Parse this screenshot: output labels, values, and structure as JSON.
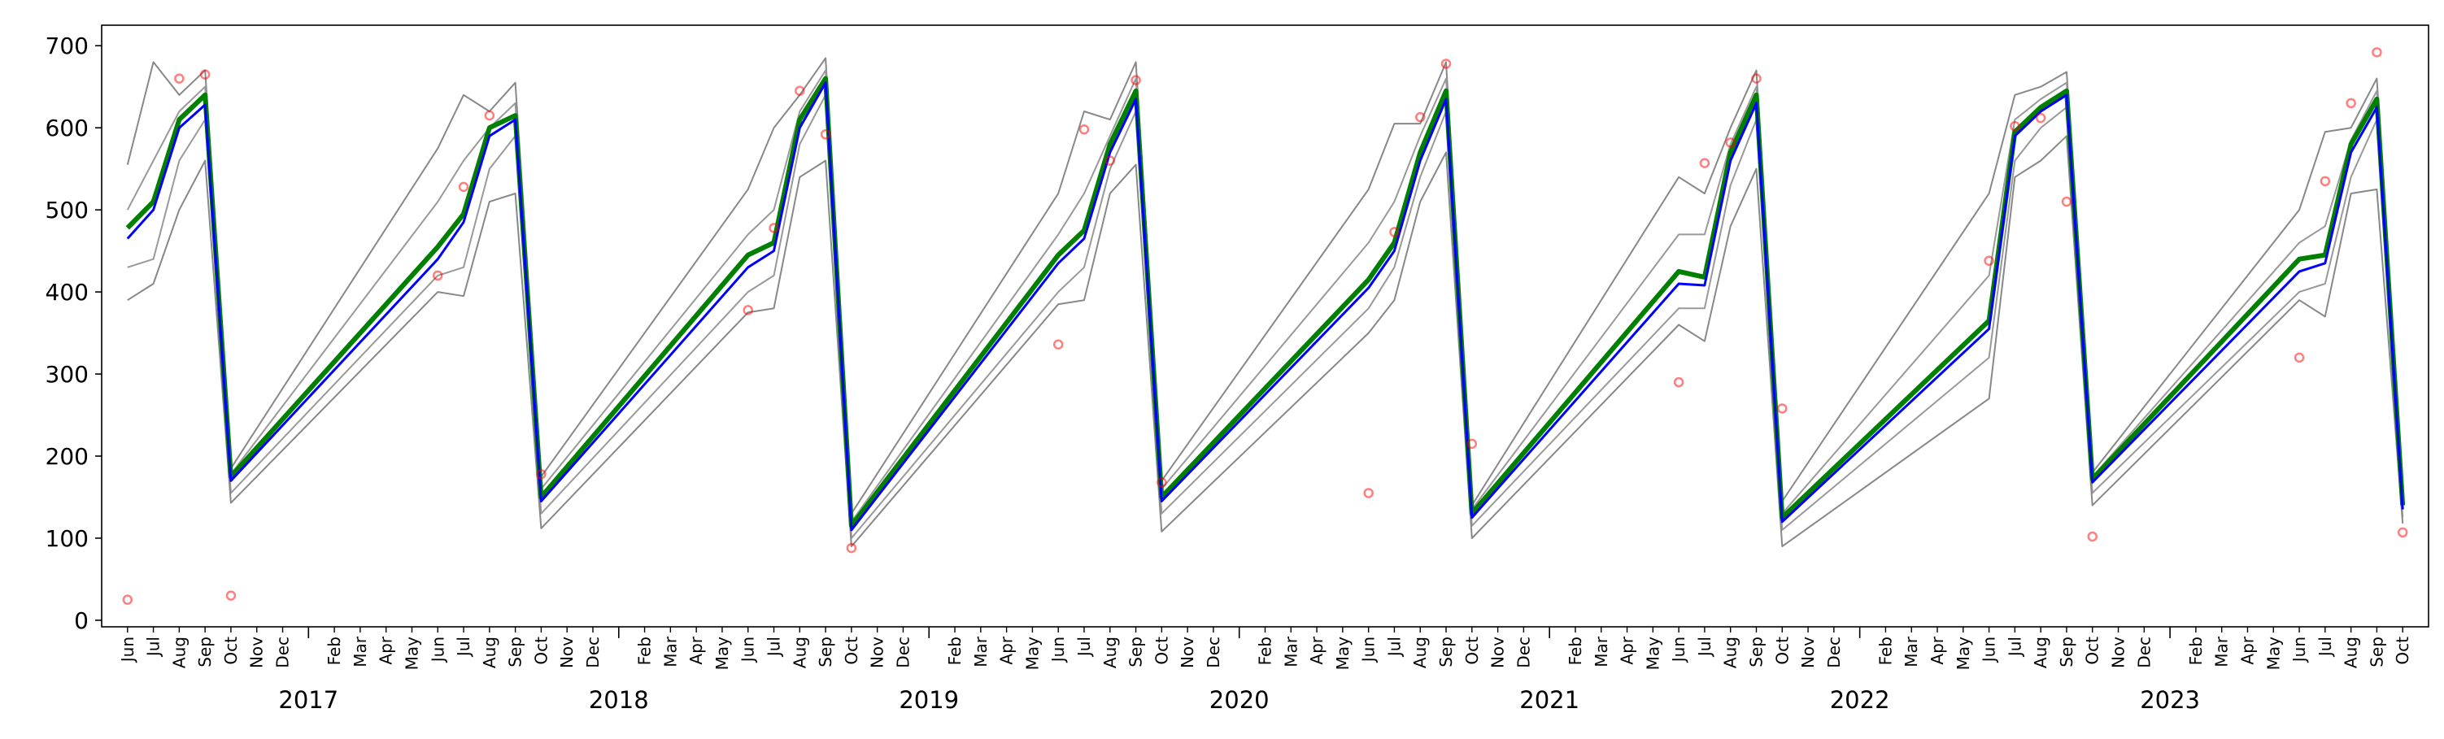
{
  "chart_data": {
    "type": "line",
    "x": [
      "2016-06",
      "2016-07",
      "2016-08",
      "2016-09",
      "2016-10",
      "2017-06",
      "2017-07",
      "2017-08",
      "2017-09",
      "2017-10",
      "2018-06",
      "2018-07",
      "2018-08",
      "2018-09",
      "2018-10",
      "2019-06",
      "2019-07",
      "2019-08",
      "2019-09",
      "2019-10",
      "2020-06",
      "2020-07",
      "2020-08",
      "2020-09",
      "2020-10",
      "2021-06",
      "2021-07",
      "2021-08",
      "2021-09",
      "2021-10",
      "2022-06",
      "2022-07",
      "2022-08",
      "2022-09",
      "2022-10",
      "2023-06",
      "2023-07",
      "2023-08",
      "2023-09",
      "2023-10"
    ],
    "series": [
      {
        "color": "#888888",
        "width": 1,
        "values": [
          555,
          680,
          640,
          670,
          185,
          575,
          640,
          620,
          655,
          175,
          525,
          600,
          640,
          685,
          130,
          520,
          620,
          610,
          680,
          170,
          525,
          605,
          605,
          680,
          140,
          540,
          520,
          600,
          670,
          145,
          520,
          640,
          650,
          668,
          180,
          500,
          595,
          600,
          660,
          165
        ]
      },
      {
        "color": "#999999",
        "width": 1,
        "values": [
          500,
          560,
          620,
          650,
          178,
          510,
          560,
          600,
          630,
          160,
          470,
          500,
          620,
          670,
          120,
          470,
          520,
          590,
          660,
          160,
          460,
          510,
          590,
          660,
          135,
          470,
          470,
          580,
          650,
          130,
          420,
          610,
          635,
          655,
          175,
          460,
          480,
          585,
          645,
          150
        ]
      },
      {
        "color": "#999999",
        "width": 1,
        "values": [
          430,
          440,
          560,
          610,
          155,
          420,
          430,
          550,
          590,
          130,
          400,
          420,
          580,
          640,
          100,
          400,
          430,
          550,
          620,
          130,
          380,
          430,
          540,
          620,
          115,
          380,
          380,
          530,
          610,
          110,
          320,
          560,
          600,
          625,
          155,
          400,
          410,
          540,
          610,
          125
        ]
      },
      {
        "color": "#888888",
        "width": 1,
        "values": [
          390,
          410,
          500,
          560,
          143,
          400,
          395,
          510,
          520,
          112,
          375,
          380,
          540,
          560,
          90,
          385,
          390,
          520,
          555,
          108,
          350,
          390,
          510,
          570,
          100,
          360,
          340,
          480,
          550,
          90,
          270,
          540,
          560,
          590,
          140,
          390,
          370,
          520,
          525,
          118
        ]
      },
      {
        "color": "#008000",
        "width": 3,
        "values": [
          478,
          510,
          610,
          640,
          175,
          455,
          495,
          600,
          615,
          150,
          445,
          460,
          610,
          660,
          115,
          445,
          475,
          580,
          645,
          150,
          415,
          460,
          570,
          645,
          130,
          425,
          418,
          570,
          640,
          125,
          365,
          595,
          625,
          645,
          172,
          440,
          445,
          580,
          635,
          140
        ]
      },
      {
        "color": "#0000ff",
        "width": 1.5,
        "values": [
          465,
          500,
          600,
          628,
          170,
          440,
          485,
          590,
          610,
          145,
          430,
          450,
          600,
          655,
          110,
          435,
          465,
          570,
          635,
          145,
          405,
          450,
          560,
          635,
          125,
          410,
          408,
          560,
          630,
          120,
          355,
          590,
          620,
          640,
          168,
          425,
          435,
          570,
          625,
          135
        ]
      },
      {
        "color": "#ff0000",
        "type": "scatter",
        "values": [
          25,
          null,
          660,
          665,
          30,
          420,
          528,
          615,
          null,
          178,
          378,
          478,
          645,
          592,
          88,
          336,
          598,
          560,
          658,
          168,
          155,
          473,
          613,
          678,
          215,
          290,
          557,
          582,
          660,
          258,
          438,
          602,
          612,
          510,
          102,
          320,
          535,
          630,
          692,
          107
        ]
      }
    ],
    "xlim": [
      "2016-05",
      "2023-11"
    ],
    "ylim": [
      -8,
      725
    ],
    "yticks": [
      0,
      100,
      200,
      300,
      400,
      500,
      600,
      700
    ],
    "xticks": [
      {
        "value": "2016-06",
        "label": "Jun"
      },
      {
        "value": "2016-07",
        "label": "Jul"
      },
      {
        "value": "2016-08",
        "label": "Aug"
      },
      {
        "value": "2016-09",
        "label": "Sep"
      },
      {
        "value": "2016-10",
        "label": "Oct"
      },
      {
        "value": "2016-11",
        "label": "Nov"
      },
      {
        "value": "2016-12",
        "label": "Dec"
      },
      {
        "value": "2017-02",
        "label": "Feb"
      },
      {
        "value": "2017-03",
        "label": "Mar"
      },
      {
        "value": "2017-04",
        "label": "Apr"
      },
      {
        "value": "2017-05",
        "label": "May"
      },
      {
        "value": "2017-06",
        "label": "Jun"
      },
      {
        "value": "2017-07",
        "label": "Jul"
      },
      {
        "value": "2017-08",
        "label": "Aug"
      },
      {
        "value": "2017-09",
        "label": "Sep"
      },
      {
        "value": "2017-10",
        "label": "Oct"
      },
      {
        "value": "2017-11",
        "label": "Nov"
      },
      {
        "value": "2017-12",
        "label": "Dec"
      },
      {
        "value": "2018-02",
        "label": "Feb"
      },
      {
        "value": "2018-03",
        "label": "Mar"
      },
      {
        "value": "2018-04",
        "label": "Apr"
      },
      {
        "value": "2018-05",
        "label": "May"
      },
      {
        "value": "2018-06",
        "label": "Jun"
      },
      {
        "value": "2018-07",
        "label": "Jul"
      },
      {
        "value": "2018-08",
        "label": "Aug"
      },
      {
        "value": "2018-09",
        "label": "Sep"
      },
      {
        "value": "2018-10",
        "label": "Oct"
      },
      {
        "value": "2018-11",
        "label": "Nov"
      },
      {
        "value": "2018-12",
        "label": "Dec"
      },
      {
        "value": "2019-02",
        "label": "Feb"
      },
      {
        "value": "2019-03",
        "label": "Mar"
      },
      {
        "value": "2019-04",
        "label": "Apr"
      },
      {
        "value": "2019-05",
        "label": "May"
      },
      {
        "value": "2019-06",
        "label": "Jun"
      },
      {
        "value": "2019-07",
        "label": "Jul"
      },
      {
        "value": "2019-08",
        "label": "Aug"
      },
      {
        "value": "2019-09",
        "label": "Sep"
      },
      {
        "value": "2019-10",
        "label": "Oct"
      },
      {
        "value": "2019-11",
        "label": "Nov"
      },
      {
        "value": "2019-12",
        "label": "Dec"
      },
      {
        "value": "2020-02",
        "label": "Feb"
      },
      {
        "value": "2020-03",
        "label": "Mar"
      },
      {
        "value": "2020-04",
        "label": "Apr"
      },
      {
        "value": "2020-05",
        "label": "May"
      },
      {
        "value": "2020-06",
        "label": "Jun"
      },
      {
        "value": "2020-07",
        "label": "Jul"
      },
      {
        "value": "2020-08",
        "label": "Aug"
      },
      {
        "value": "2020-09",
        "label": "Sep"
      },
      {
        "value": "2020-10",
        "label": "Oct"
      },
      {
        "value": "2020-11",
        "label": "Nov"
      },
      {
        "value": "2020-12",
        "label": "Dec"
      },
      {
        "value": "2021-02",
        "label": "Feb"
      },
      {
        "value": "2021-03",
        "label": "Mar"
      },
      {
        "value": "2021-04",
        "label": "Apr"
      },
      {
        "value": "2021-05",
        "label": "May"
      },
      {
        "value": "2021-06",
        "label": "Jun"
      },
      {
        "value": "2021-07",
        "label": "Jul"
      },
      {
        "value": "2021-08",
        "label": "Aug"
      },
      {
        "value": "2021-09",
        "label": "Sep"
      },
      {
        "value": "2021-10",
        "label": "Oct"
      },
      {
        "value": "2021-11",
        "label": "Nov"
      },
      {
        "value": "2021-12",
        "label": "Dec"
      },
      {
        "value": "2022-02",
        "label": "Feb"
      },
      {
        "value": "2022-03",
        "label": "Mar"
      },
      {
        "value": "2022-04",
        "label": "Apr"
      },
      {
        "value": "2022-05",
        "label": "May"
      },
      {
        "value": "2022-06",
        "label": "Jun"
      },
      {
        "value": "2022-07",
        "label": "Jul"
      },
      {
        "value": "2022-08",
        "label": "Aug"
      },
      {
        "value": "2022-09",
        "label": "Sep"
      },
      {
        "value": "2022-10",
        "label": "Oct"
      },
      {
        "value": "2022-11",
        "label": "Nov"
      },
      {
        "value": "2022-12",
        "label": "Dec"
      },
      {
        "value": "2023-02",
        "label": "Feb"
      },
      {
        "value": "2023-03",
        "label": "Mar"
      },
      {
        "value": "2023-04",
        "label": "Apr"
      },
      {
        "value": "2023-05",
        "label": "May"
      },
      {
        "value": "2023-06",
        "label": "Jun"
      },
      {
        "value": "2023-07",
        "label": "Jul"
      },
      {
        "value": "2023-08",
        "label": "Aug"
      },
      {
        "value": "2023-09",
        "label": "Sep"
      },
      {
        "value": "2023-10",
        "label": "Oct"
      }
    ],
    "xticks_major": [
      {
        "value": "2017-01",
        "label": "2017"
      },
      {
        "value": "2018-01",
        "label": "2018"
      },
      {
        "value": "2019-01",
        "label": "2019"
      },
      {
        "value": "2020-01",
        "label": "2020"
      },
      {
        "value": "2021-01",
        "label": "2021"
      },
      {
        "value": "2022-01",
        "label": "2022"
      },
      {
        "value": "2023-01",
        "label": "2023"
      }
    ]
  }
}
